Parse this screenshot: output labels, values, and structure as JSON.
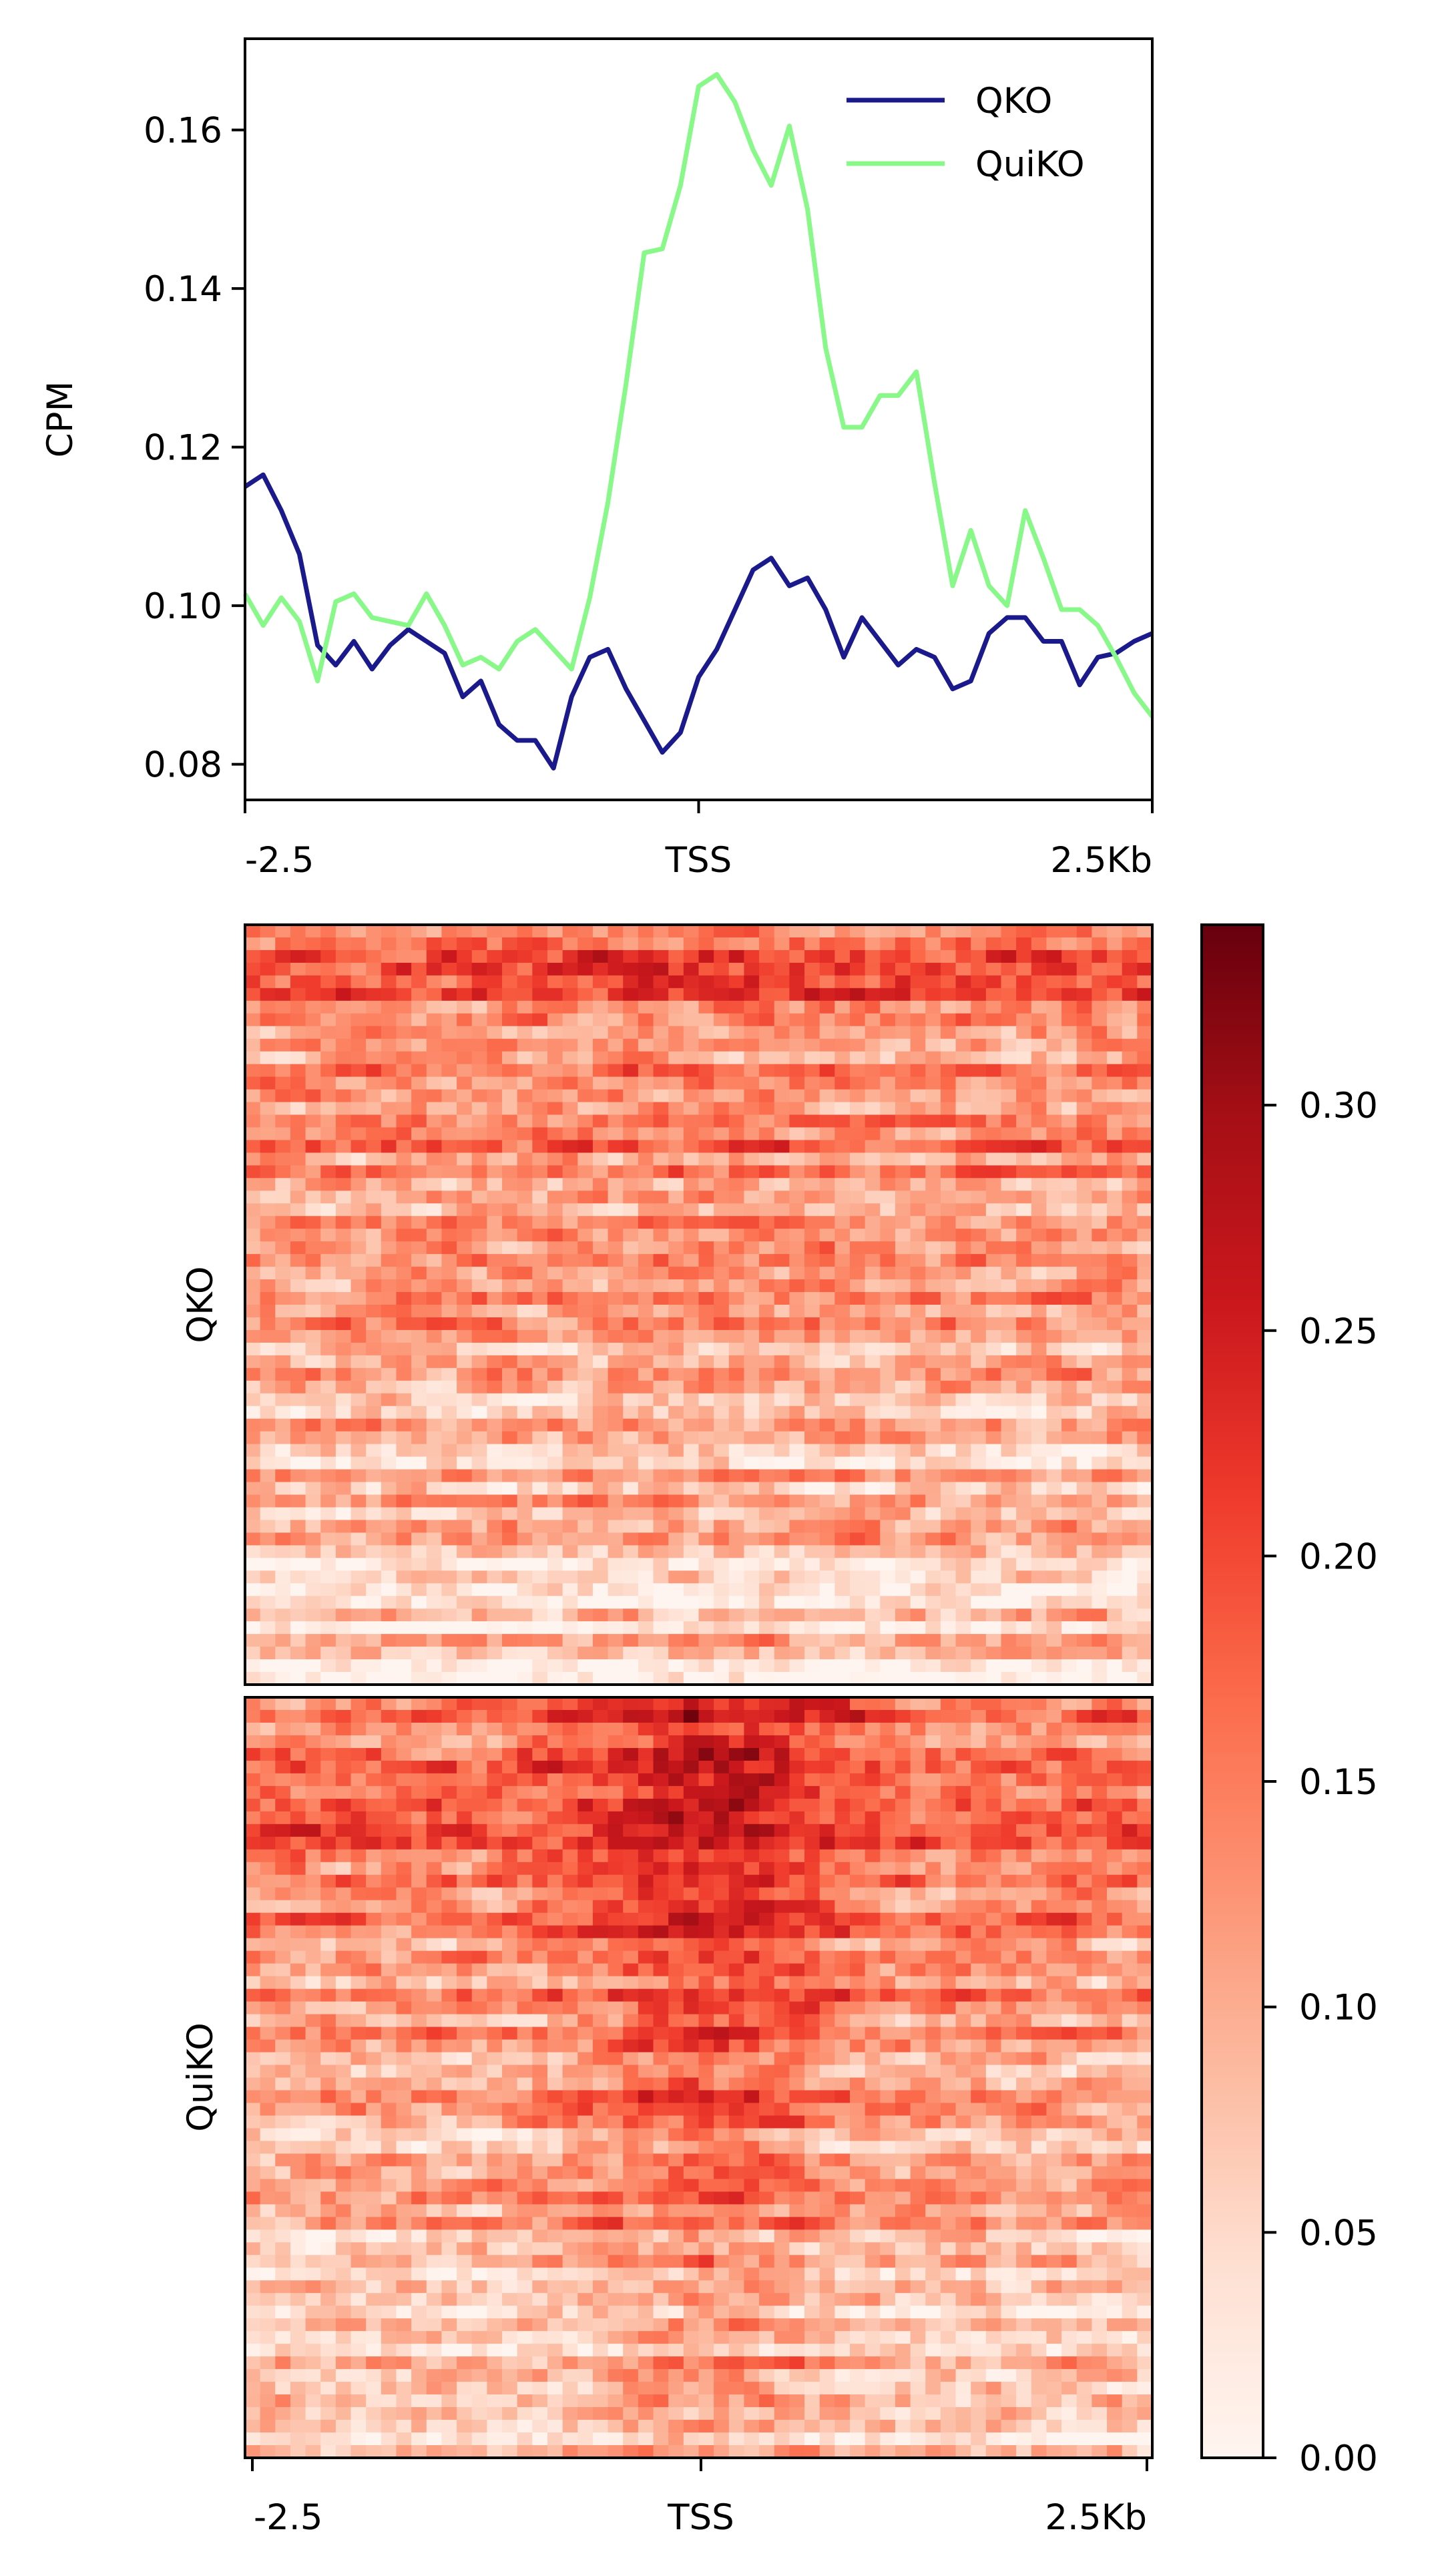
{
  "chart_data": [
    {
      "type": "line",
      "title": "",
      "xlabel": "",
      "ylabel": "CPM",
      "xticks": [
        "-2.5",
        "TSS",
        "2.5Kb"
      ],
      "xlim": [
        -2.5,
        2.5
      ],
      "ylim": [
        0.0755,
        0.1715
      ],
      "yticks": [
        "0.08",
        "0.10",
        "0.12",
        "0.14",
        "0.16"
      ],
      "yticks_values": [
        0.08,
        0.1,
        0.12,
        0.14,
        0.16
      ],
      "grid": false,
      "legend": "top-right",
      "x": [
        -2.5,
        -2.4,
        -2.3,
        -2.2,
        -2.1,
        -2.0,
        -1.9,
        -1.8,
        -1.7,
        -1.6,
        -1.5,
        -1.4,
        -1.3,
        -1.2,
        -1.1,
        -1.0,
        -0.9,
        -0.8,
        -0.7,
        -0.6,
        -0.5,
        -0.4,
        -0.3,
        -0.2,
        -0.1,
        0.0,
        0.1,
        0.2,
        0.3,
        0.4,
        0.5,
        0.6,
        0.7,
        0.8,
        0.9,
        1.0,
        1.1,
        1.2,
        1.3,
        1.4,
        1.5,
        1.6,
        1.7,
        1.8,
        1.9,
        2.0,
        2.1,
        2.2,
        2.3,
        2.4,
        2.5
      ],
      "series": [
        {
          "name": "QKO",
          "color": "#1a1a8c",
          "values": [
            0.115,
            0.1165,
            0.112,
            0.1065,
            0.095,
            0.0925,
            0.0955,
            0.092,
            0.095,
            0.097,
            0.0955,
            0.094,
            0.0885,
            0.0905,
            0.085,
            0.083,
            0.083,
            0.0795,
            0.0885,
            0.0935,
            0.0945,
            0.0895,
            0.0855,
            0.0815,
            0.084,
            0.091,
            0.0945,
            0.0995,
            0.1045,
            0.106,
            0.1025,
            0.1035,
            0.0995,
            0.0935,
            0.0985,
            0.0955,
            0.0925,
            0.0945,
            0.0935,
            0.0895,
            0.0905,
            0.0965,
            0.0985,
            0.0985,
            0.0955,
            0.0955,
            0.09,
            0.0935,
            0.094,
            0.0955,
            0.0965
          ]
        },
        {
          "name": "QuiKO",
          "color": "#88f888",
          "values": [
            0.1015,
            0.0975,
            0.101,
            0.098,
            0.0905,
            0.1005,
            0.1015,
            0.0985,
            0.098,
            0.0975,
            0.1015,
            0.0975,
            0.0925,
            0.0935,
            0.092,
            0.0955,
            0.097,
            0.0945,
            0.092,
            0.101,
            0.113,
            0.128,
            0.1445,
            0.145,
            0.153,
            0.1655,
            0.167,
            0.1635,
            0.1575,
            0.153,
            0.1605,
            0.15,
            0.1325,
            0.1225,
            0.1225,
            0.1265,
            0.1265,
            0.1295,
            0.1155,
            0.1025,
            0.1095,
            0.1025,
            0.1,
            0.112,
            0.106,
            0.0995,
            0.0995,
            0.0975,
            0.0935,
            0.089,
            0.086
          ]
        }
      ]
    },
    {
      "type": "heatmap",
      "title": "",
      "xlabel": "",
      "xticks": [
        "-2.5",
        "TSS",
        "2.5Kb"
      ],
      "rows_label": "QKO",
      "colormap": "Reds",
      "value_range": [
        0,
        0.34
      ],
      "n_rows": 60,
      "n_cols": 60
    },
    {
      "type": "heatmap",
      "title": "",
      "xlabel": "",
      "xticks": [
        "-2.5",
        "TSS",
        "2.5Kb"
      ],
      "rows_label": "QuiKO",
      "colormap": "Reds",
      "value_range": [
        0,
        0.34
      ],
      "n_rows": 60,
      "n_cols": 60
    }
  ],
  "colorbar": {
    "colormap": "Reds",
    "range": [
      0,
      0.34
    ],
    "ticks": [
      "0.00",
      "0.05",
      "0.10",
      "0.15",
      "0.20",
      "0.25",
      "0.30"
    ],
    "tick_values": [
      0.0,
      0.05,
      0.1,
      0.15,
      0.2,
      0.25,
      0.3
    ]
  }
}
